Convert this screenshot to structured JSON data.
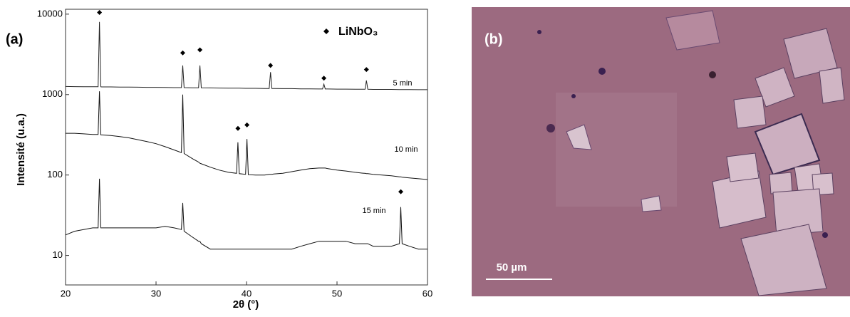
{
  "chart_data": {
    "type": "line",
    "panel_label": "(a)",
    "xlabel": "2θ (°)",
    "ylabel": "Intensité (u.a.)",
    "log_y": true,
    "legend": {
      "marker_name": "LiNbO₃",
      "corner": "upper right"
    },
    "xlim": [
      20,
      60
    ],
    "xticks": [
      20,
      30,
      40,
      50,
      60
    ],
    "ylim": [
      4.3,
      11500
    ],
    "yticks": [
      10,
      100,
      1000,
      10000
    ],
    "x": [
      20,
      21,
      22,
      23,
      23.6,
      23.75,
      23.9,
      24,
      25,
      26,
      27,
      28,
      29,
      30,
      31,
      32,
      32.8,
      32.95,
      33.1,
      34,
      34.7,
      34.85,
      35,
      36,
      37,
      38,
      38.9,
      39.05,
      39.2,
      39.9,
      40.05,
      40.2,
      41,
      42,
      42.5,
      42.65,
      42.8,
      43,
      44,
      45,
      46,
      47,
      48,
      48.4,
      48.55,
      48.7,
      49,
      50,
      51,
      52,
      53,
      53.1,
      53.25,
      53.4,
      54,
      55,
      56,
      56.9,
      57.05,
      57.2,
      58,
      59,
      60
    ],
    "series": [
      {
        "name": "5 min",
        "color": "#222222",
        "values": [
          1260,
          1255,
          1250,
          1250,
          1250,
          8000,
          1250,
          1245,
          1245,
          1240,
          1240,
          1235,
          1230,
          1230,
          1225,
          1220,
          1220,
          2300,
          1220,
          1215,
          1215,
          2300,
          1215,
          1210,
          1205,
          1200,
          1200,
          1200,
          1200,
          1195,
          1195,
          1195,
          1195,
          1190,
          1190,
          1900,
          1190,
          1190,
          1185,
          1185,
          1180,
          1180,
          1175,
          1175,
          1350,
          1175,
          1175,
          1170,
          1170,
          1165,
          1165,
          1165,
          1500,
          1165,
          1160,
          1160,
          1160,
          1155,
          1155,
          1155,
          1155,
          1150,
          1150
        ]
      },
      {
        "name": "10 min",
        "color": "#111111",
        "values": [
          330,
          330,
          325,
          320,
          320,
          1100,
          315,
          315,
          310,
          300,
          290,
          275,
          260,
          245,
          225,
          205,
          190,
          1000,
          185,
          160,
          145,
          140,
          138,
          125,
          115,
          108,
          105,
          255,
          104,
          102,
          280,
          101,
          100,
          100,
          102,
          102,
          102,
          103,
          105,
          110,
          115,
          120,
          122,
          122,
          122,
          122,
          120,
          115,
          112,
          108,
          105,
          105,
          104,
          104,
          102,
          100,
          98,
          95,
          95,
          94,
          92,
          90,
          88
        ]
      },
      {
        "name": "15 min",
        "color": "#111111",
        "values": [
          18,
          20,
          21,
          22,
          22,
          90,
          22,
          22,
          22,
          22,
          22,
          22,
          22,
          22,
          23,
          22,
          21,
          45,
          20,
          17,
          15,
          15,
          14,
          12,
          12,
          12,
          12,
          12,
          12,
          12,
          12,
          12,
          12,
          12,
          12,
          12,
          12,
          12,
          12,
          12,
          13,
          14,
          15,
          15,
          15,
          15,
          15,
          15,
          15,
          14,
          14,
          14,
          14,
          14,
          13,
          13,
          13,
          14,
          40,
          14,
          13,
          12,
          12
        ]
      }
    ],
    "peak_markers": [
      {
        "x": 23.75,
        "y": 10500
      },
      {
        "x": 32.95,
        "y": 3300
      },
      {
        "x": 34.85,
        "y": 3600
      },
      {
        "x": 42.65,
        "y": 2300
      },
      {
        "x": 48.55,
        "y": 1600
      },
      {
        "x": 53.25,
        "y": 2050
      },
      {
        "x": 39.05,
        "y": 380
      },
      {
        "x": 40.05,
        "y": 420
      },
      {
        "x": 57.05,
        "y": 62
      }
    ]
  },
  "image_panel": {
    "label": "(b)",
    "scale_bar": "50 µm"
  }
}
